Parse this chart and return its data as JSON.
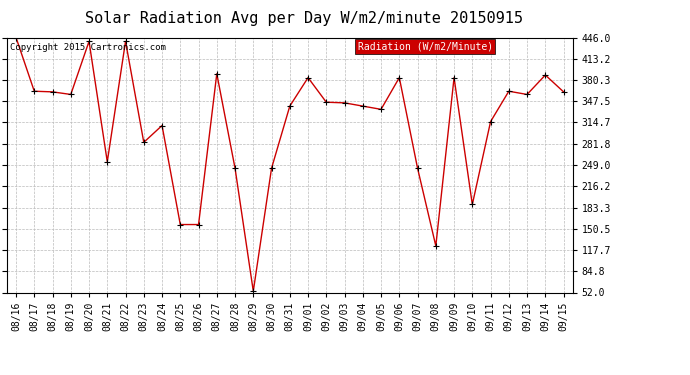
{
  "title": "Solar Radiation Avg per Day W/m2/minute 20150915",
  "copyright_text": "Copyright 2015 Cartronics.com",
  "legend_label": "Radiation (W/m2/Minute)",
  "dates": [
    "08/16",
    "08/17",
    "08/18",
    "08/19",
    "08/20",
    "08/21",
    "08/22",
    "08/23",
    "08/24",
    "08/25",
    "08/26",
    "08/27",
    "08/28",
    "08/29",
    "08/30",
    "08/31",
    "09/01",
    "09/02",
    "09/03",
    "09/04",
    "09/05",
    "09/06",
    "09/07",
    "09/08",
    "09/09",
    "09/10",
    "09/11",
    "09/12",
    "09/13",
    "09/14",
    "09/15"
  ],
  "values": [
    446.0,
    363.0,
    362.0,
    358.0,
    440.0,
    254.0,
    440.0,
    284.0,
    310.0,
    157.0,
    157.0,
    390.0,
    244.0,
    54.0,
    244.0,
    340.0,
    384.0,
    346.0,
    345.0,
    340.0,
    335.0,
    384.0,
    244.0,
    124.0,
    384.0,
    188.0,
    316.0,
    363.0,
    358.0,
    388.0,
    362.0
  ],
  "yticks": [
    52.0,
    84.8,
    117.7,
    150.5,
    183.3,
    216.2,
    249.0,
    281.8,
    314.7,
    347.5,
    380.3,
    413.2,
    446.0
  ],
  "ytick_labels": [
    "52.0",
    "84.8",
    "117.7",
    "150.5",
    "183.3",
    "216.2",
    "249.0",
    "281.8",
    "314.7",
    "347.5",
    "380.3",
    "413.2",
    "446.0"
  ],
  "line_color": "#cc0000",
  "marker_color": "#000000",
  "bg_color": "#ffffff",
  "grid_color": "#bbbbbb",
  "legend_bg": "#cc0000",
  "legend_text_color": "#ffffff",
  "title_fontsize": 11,
  "tick_fontsize": 7,
  "copyright_fontsize": 6.5,
  "legend_fontsize": 7,
  "ylim": [
    52.0,
    446.0
  ]
}
